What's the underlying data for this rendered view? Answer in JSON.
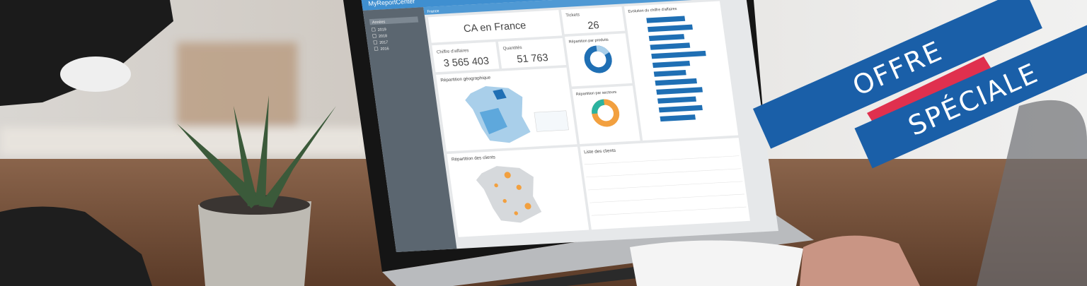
{
  "banner": {
    "line1": "OFFRE",
    "line2": "SPÉCIALE"
  },
  "dashboard": {
    "logo": "MyReportCenter",
    "tab": "France",
    "sidebar": {
      "title": "Années",
      "items": [
        "2019",
        "2018",
        "2017",
        "2016"
      ]
    },
    "title": "CA en France",
    "kpis": [
      {
        "label": "Chiffre d'affaires",
        "value": "3 565 403"
      },
      {
        "label": "Quantités",
        "value": "51 763"
      },
      {
        "label": "Tickets",
        "value": "26"
      }
    ],
    "panels": {
      "geo": "Répartition géographique",
      "products": "Répartition par produits",
      "sectors": "Répartition par secteurs",
      "evolution": "Evolution du chiffre d'affaires",
      "clients_map": "Répartition des clients",
      "clients_list": "Liste des clients"
    }
  }
}
